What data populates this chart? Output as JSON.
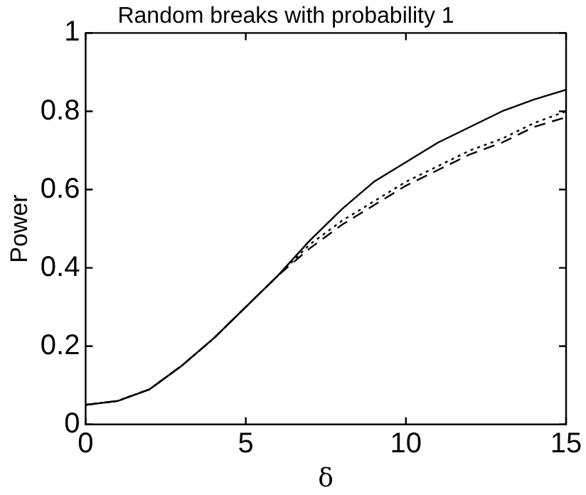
{
  "chart_data": {
    "type": "line",
    "title": "Random breaks with probability 1",
    "xlabel": "δ",
    "ylabel": "Power",
    "x": [
      0,
      1,
      2,
      3,
      4,
      5,
      6,
      7,
      8,
      9,
      10,
      11,
      12,
      13,
      14,
      15
    ],
    "series": [
      {
        "color": "#000000",
        "line_style": "solid",
        "values": [
          0.05,
          0.06,
          0.09,
          0.15,
          0.22,
          0.3,
          0.38,
          0.47,
          0.55,
          0.62,
          0.67,
          0.72,
          0.76,
          0.8,
          0.83,
          0.855
        ]
      },
      {
        "color": "#000000",
        "line_style": "dashed",
        "values": [
          0.05,
          0.06,
          0.09,
          0.15,
          0.22,
          0.3,
          0.38,
          0.45,
          0.51,
          0.56,
          0.61,
          0.65,
          0.69,
          0.72,
          0.76,
          0.785
        ]
      },
      {
        "color": "#000000",
        "line_style": "dotted",
        "values": [
          0.05,
          0.06,
          0.09,
          0.15,
          0.22,
          0.3,
          0.38,
          0.46,
          0.52,
          0.57,
          0.62,
          0.66,
          0.7,
          0.73,
          0.77,
          0.8
        ]
      }
    ],
    "xlim": [
      0,
      15
    ],
    "xticks": [
      0,
      5,
      10,
      15
    ],
    "ylim": [
      0,
      1
    ],
    "yticks": [
      0,
      0.2,
      0.4,
      0.6,
      0.8,
      1
    ],
    "grid": false,
    "legend": false,
    "marker": "none"
  }
}
